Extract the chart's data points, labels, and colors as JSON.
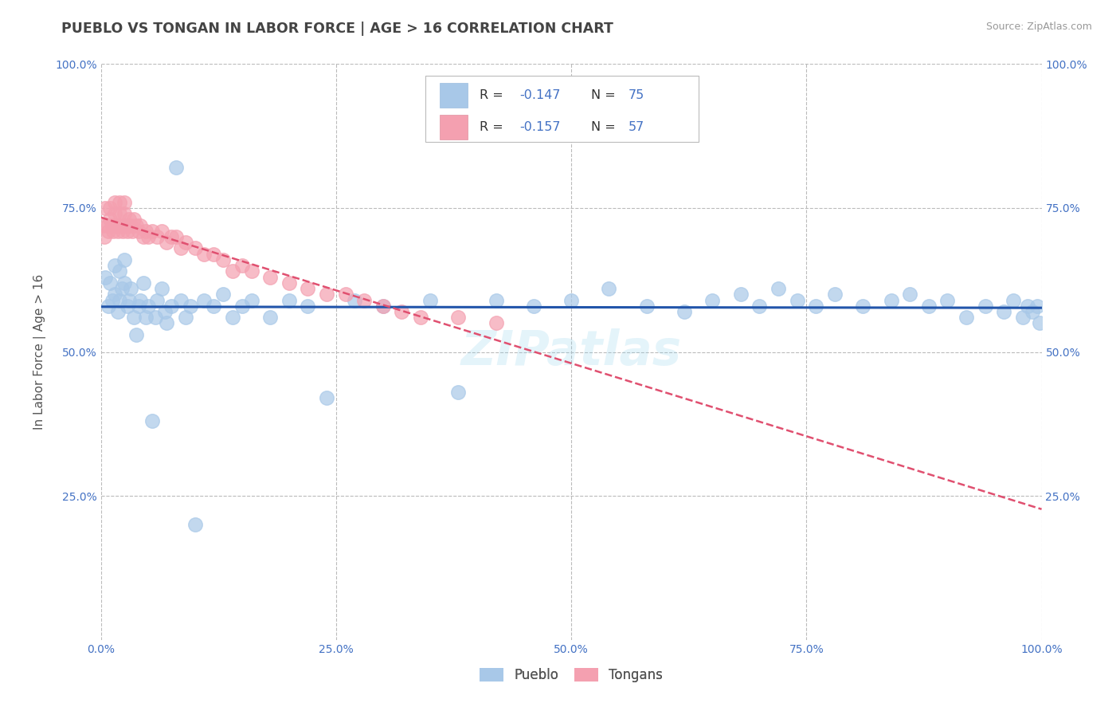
{
  "title": "PUEBLO VS TONGAN IN LABOR FORCE | AGE > 16 CORRELATION CHART",
  "source_text": "Source: ZipAtlas.com",
  "ylabel": "In Labor Force | Age > 16",
  "xlim": [
    0.0,
    1.0
  ],
  "ylim": [
    0.0,
    1.0
  ],
  "xtick_labels": [
    "0.0%",
    "25.0%",
    "50.0%",
    "75.0%",
    "100.0%"
  ],
  "xtick_vals": [
    0.0,
    0.25,
    0.5,
    0.75,
    1.0
  ],
  "ytick_labels": [
    "25.0%",
    "50.0%",
    "75.0%",
    "100.0%"
  ],
  "ytick_vals": [
    0.25,
    0.5,
    0.75,
    1.0
  ],
  "pueblo_color": "#A8C8E8",
  "tongan_color": "#F4A0B0",
  "pueblo_line_color": "#2255AA",
  "tongan_line_color": "#E05070",
  "background_color": "#FFFFFF",
  "grid_color": "#BBBBBB",
  "title_color": "#444444",
  "axis_color": "#4472C4",
  "watermark": "ZIPatlas",
  "pueblo_x": [
    0.005,
    0.008,
    0.01,
    0.012,
    0.015,
    0.015,
    0.018,
    0.02,
    0.02,
    0.022,
    0.025,
    0.025,
    0.028,
    0.03,
    0.032,
    0.035,
    0.038,
    0.04,
    0.042,
    0.045,
    0.048,
    0.05,
    0.055,
    0.058,
    0.06,
    0.065,
    0.068,
    0.07,
    0.075,
    0.08,
    0.085,
    0.09,
    0.095,
    0.1,
    0.11,
    0.12,
    0.13,
    0.14,
    0.15,
    0.16,
    0.18,
    0.2,
    0.22,
    0.24,
    0.27,
    0.3,
    0.35,
    0.38,
    0.42,
    0.46,
    0.5,
    0.54,
    0.58,
    0.62,
    0.65,
    0.68,
    0.7,
    0.72,
    0.74,
    0.76,
    0.78,
    0.81,
    0.84,
    0.86,
    0.88,
    0.9,
    0.92,
    0.94,
    0.96,
    0.97,
    0.98,
    0.985,
    0.99,
    0.995,
    0.998
  ],
  "pueblo_y": [
    0.63,
    0.58,
    0.62,
    0.59,
    0.65,
    0.6,
    0.57,
    0.64,
    0.59,
    0.61,
    0.66,
    0.62,
    0.58,
    0.59,
    0.61,
    0.56,
    0.53,
    0.58,
    0.59,
    0.62,
    0.56,
    0.58,
    0.38,
    0.56,
    0.59,
    0.61,
    0.57,
    0.55,
    0.58,
    0.82,
    0.59,
    0.56,
    0.58,
    0.2,
    0.59,
    0.58,
    0.6,
    0.56,
    0.58,
    0.59,
    0.56,
    0.59,
    0.58,
    0.42,
    0.59,
    0.58,
    0.59,
    0.43,
    0.59,
    0.58,
    0.59,
    0.61,
    0.58,
    0.57,
    0.59,
    0.6,
    0.58,
    0.61,
    0.59,
    0.58,
    0.6,
    0.58,
    0.59,
    0.6,
    0.58,
    0.59,
    0.56,
    0.58,
    0.57,
    0.59,
    0.56,
    0.58,
    0.57,
    0.58,
    0.55
  ],
  "tongan_x": [
    0.002,
    0.004,
    0.005,
    0.007,
    0.008,
    0.01,
    0.01,
    0.012,
    0.013,
    0.015,
    0.015,
    0.017,
    0.018,
    0.02,
    0.02,
    0.022,
    0.023,
    0.025,
    0.025,
    0.027,
    0.028,
    0.03,
    0.032,
    0.033,
    0.035,
    0.038,
    0.04,
    0.042,
    0.045,
    0.048,
    0.05,
    0.055,
    0.06,
    0.065,
    0.07,
    0.075,
    0.08,
    0.085,
    0.09,
    0.1,
    0.11,
    0.12,
    0.13,
    0.14,
    0.15,
    0.16,
    0.18,
    0.2,
    0.22,
    0.24,
    0.26,
    0.28,
    0.3,
    0.32,
    0.34,
    0.38,
    0.42
  ],
  "tongan_y": [
    0.72,
    0.7,
    0.75,
    0.72,
    0.71,
    0.73,
    0.75,
    0.72,
    0.71,
    0.74,
    0.76,
    0.72,
    0.71,
    0.74,
    0.76,
    0.72,
    0.71,
    0.74,
    0.76,
    0.72,
    0.71,
    0.73,
    0.72,
    0.71,
    0.73,
    0.72,
    0.71,
    0.72,
    0.7,
    0.71,
    0.7,
    0.71,
    0.7,
    0.71,
    0.69,
    0.7,
    0.7,
    0.68,
    0.69,
    0.68,
    0.67,
    0.67,
    0.66,
    0.64,
    0.65,
    0.64,
    0.63,
    0.62,
    0.61,
    0.6,
    0.6,
    0.59,
    0.58,
    0.57,
    0.56,
    0.56,
    0.55
  ]
}
